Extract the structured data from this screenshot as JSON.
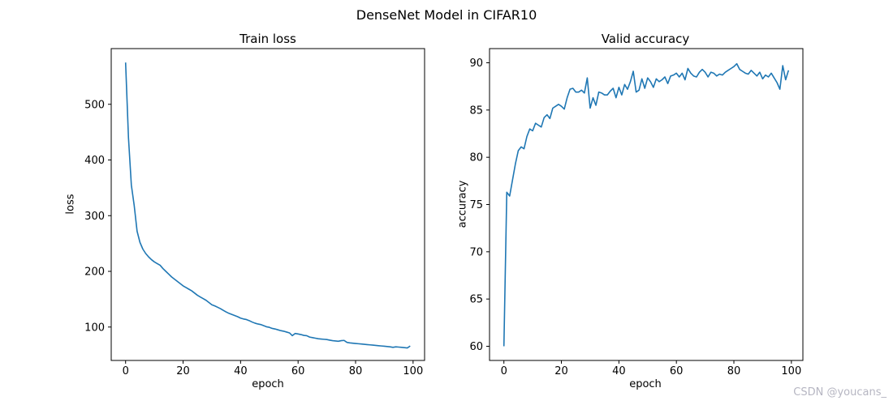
{
  "figure": {
    "suptitle": "DenseNet Model in CIFAR10",
    "watermark": "CSDN @youcans_",
    "watermark_color": "#b6b6c2",
    "background": "#ffffff"
  },
  "chart_data": [
    {
      "type": "line",
      "name": "train-loss",
      "title": "Train loss",
      "xlabel": "epoch",
      "ylabel": "loss",
      "legend": null,
      "grid": false,
      "line_color": "#1f77b4",
      "xlim": [
        -5,
        104
      ],
      "ylim": [
        40,
        600
      ],
      "xticks": [
        0,
        20,
        40,
        60,
        80,
        100
      ],
      "yticks": [
        100,
        200,
        300,
        400,
        500
      ],
      "x": [
        0,
        1,
        2,
        3,
        4,
        5,
        6,
        7,
        8,
        9,
        10,
        11,
        12,
        13,
        14,
        15,
        16,
        17,
        18,
        19,
        20,
        21,
        22,
        23,
        24,
        25,
        26,
        27,
        28,
        29,
        30,
        31,
        32,
        33,
        34,
        35,
        36,
        37,
        38,
        39,
        40,
        41,
        42,
        43,
        44,
        45,
        46,
        47,
        48,
        49,
        50,
        51,
        52,
        53,
        54,
        55,
        56,
        57,
        58,
        59,
        60,
        61,
        62,
        63,
        64,
        65,
        66,
        67,
        68,
        69,
        70,
        71,
        72,
        73,
        74,
        75,
        76,
        77,
        78,
        79,
        80,
        81,
        82,
        83,
        84,
        85,
        86,
        87,
        88,
        89,
        90,
        91,
        92,
        93,
        94,
        95,
        96,
        97,
        98,
        99
      ],
      "y": [
        575,
        440,
        355,
        318,
        272,
        252,
        240,
        232,
        226,
        221,
        217,
        214,
        211,
        205,
        200,
        195,
        190,
        186,
        182,
        178,
        174,
        171,
        168,
        165,
        161,
        157,
        154,
        151,
        148,
        144,
        140,
        138,
        135.5,
        133,
        130,
        127,
        124.5,
        122.5,
        120.5,
        118.5,
        116,
        114.5,
        113.5,
        111.5,
        109,
        107,
        105.5,
        104.5,
        102.5,
        100.5,
        99.5,
        97.5,
        96.5,
        95,
        93.5,
        92.5,
        91,
        89.5,
        84.5,
        88.5,
        87.5,
        86.5,
        85,
        84.5,
        82,
        81,
        80,
        79,
        78.5,
        78,
        77.5,
        76.5,
        75.5,
        75,
        74.5,
        75.5,
        76,
        72.5,
        71.5,
        71,
        70.5,
        70,
        69.5,
        69,
        68.5,
        68,
        67.5,
        67,
        66.5,
        66,
        65.5,
        65,
        64.5,
        63.5,
        64.5,
        64,
        63.5,
        63,
        62.5,
        66
      ]
    },
    {
      "type": "line",
      "name": "valid-accuracy",
      "title": "Valid accuracy",
      "xlabel": "epoch",
      "ylabel": "accuracy",
      "legend": null,
      "grid": false,
      "line_color": "#1f77b4",
      "xlim": [
        -5,
        104
      ],
      "ylim": [
        58.5,
        91.5
      ],
      "xticks": [
        0,
        20,
        40,
        60,
        80,
        100
      ],
      "yticks": [
        60,
        65,
        70,
        75,
        80,
        85,
        90
      ],
      "x": [
        0,
        1,
        2,
        3,
        4,
        5,
        6,
        7,
        8,
        9,
        10,
        11,
        12,
        13,
        14,
        15,
        16,
        17,
        18,
        19,
        20,
        21,
        22,
        23,
        24,
        25,
        26,
        27,
        28,
        29,
        30,
        31,
        32,
        33,
        34,
        35,
        36,
        37,
        38,
        39,
        40,
        41,
        42,
        43,
        44,
        45,
        46,
        47,
        48,
        49,
        50,
        51,
        52,
        53,
        54,
        55,
        56,
        57,
        58,
        59,
        60,
        61,
        62,
        63,
        64,
        65,
        66,
        67,
        68,
        69,
        70,
        71,
        72,
        73,
        74,
        75,
        76,
        77,
        78,
        79,
        80,
        81,
        82,
        83,
        84,
        85,
        86,
        87,
        88,
        89,
        90,
        91,
        92,
        93,
        94,
        95,
        96,
        97,
        98,
        99
      ],
      "y": [
        60,
        76.3,
        75.9,
        77.6,
        79.3,
        80.7,
        81.1,
        80.9,
        82.2,
        83,
        82.8,
        83.6,
        83.4,
        83.2,
        84.2,
        84.5,
        84.1,
        85.2,
        85.4,
        85.6,
        85.4,
        85.1,
        86.3,
        87.2,
        87.3,
        86.9,
        86.9,
        87.1,
        86.8,
        88.4,
        85.2,
        86.3,
        85.5,
        86.9,
        86.8,
        86.6,
        86.6,
        87,
        87.3,
        86.3,
        87.4,
        86.6,
        87.7,
        87.2,
        88,
        89.1,
        86.9,
        87.1,
        88.3,
        87.3,
        88.4,
        88,
        87.4,
        88.3,
        88,
        88.2,
        88.5,
        87.8,
        88.6,
        88.7,
        88.9,
        88.5,
        88.9,
        88.2,
        89.4,
        88.9,
        88.6,
        88.5,
        89,
        89.3,
        89,
        88.5,
        89,
        88.9,
        88.6,
        88.8,
        88.7,
        89,
        89.2,
        89.4,
        89.6,
        89.9,
        89.3,
        89.1,
        88.9,
        88.8,
        89.2,
        88.9,
        88.6,
        89,
        88.3,
        88.7,
        88.5,
        88.9,
        88.4,
        87.9,
        87.2,
        89.7,
        88.2,
        89.2
      ]
    }
  ]
}
